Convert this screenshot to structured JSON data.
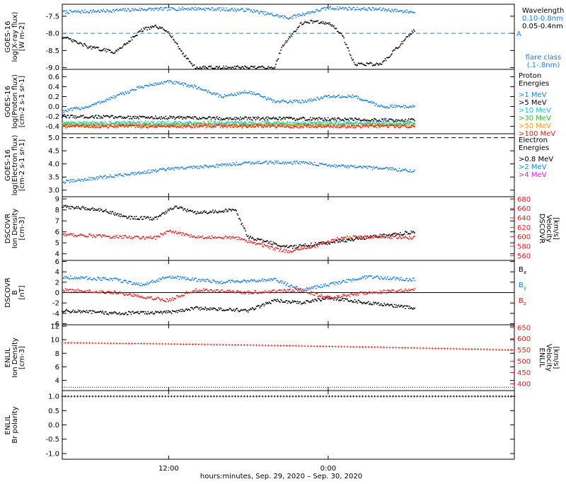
{
  "figure": {
    "xlabel": "hours:minutes, Sep. 29, 2020 – Sep. 30, 2020",
    "x_range": [
      "2020-09-29T04:00",
      "2020-09-30T14:00"
    ],
    "x_ticks": [
      {
        "t": "2020-09-29T12:00",
        "label": "12:00"
      },
      {
        "t": "2020-09-30T00:00",
        "label": "0:00"
      }
    ]
  },
  "colors": {
    "black": "#000000",
    "blue": "#1e7fd6",
    "cyan": "#22c4d8",
    "green": "#33bb33",
    "orange": "#e8a020",
    "red": "#e02020",
    "magenta": "#dd22dd"
  },
  "chart_data": [
    {
      "id": "xray",
      "type": "scatter",
      "ylabel": [
        "GOES-16",
        "log(X-ray flux)",
        "[W m-2]"
      ],
      "ylim": [
        -9.05,
        -7.15
      ],
      "yticks": [
        -9.0,
        -8.5,
        -8.0,
        -7.5
      ],
      "ytick_labels": [
        "-9.0",
        "-8.5",
        "-8.0",
        "-7.5"
      ],
      "ref_line": {
        "y": -8.0,
        "label": "A",
        "color": "blue"
      },
      "legend": {
        "title": "Wavelength",
        "entries": [
          {
            "label": "0.10-0.8nm",
            "color": "blue"
          },
          {
            "label": "0.05-0.4nm",
            "color": "black"
          }
        ],
        "footer": [
          "flare class",
          "(.1-.8nm)"
        ],
        "footer_color": "blue"
      },
      "series": [
        {
          "color": "blue",
          "points": [
            [
              "2020-09-29T04:00",
              -7.38
            ],
            [
              "2020-09-29T07:00",
              -7.35
            ],
            [
              "2020-09-29T10:00",
              -7.3
            ],
            [
              "2020-09-29T14:00",
              -7.28
            ],
            [
              "2020-09-29T18:00",
              -7.32
            ],
            [
              "2020-09-29T21:00",
              -7.55
            ],
            [
              "2020-09-29T22:00",
              -7.45
            ],
            [
              "2020-09-30T00:00",
              -7.26
            ],
            [
              "2020-09-30T04:00",
              -7.3
            ],
            [
              "2020-09-30T06:30",
              -7.38
            ]
          ]
        },
        {
          "color": "black",
          "points": [
            [
              "2020-09-29T04:00",
              -8.1
            ],
            [
              "2020-09-29T06:00",
              -8.4
            ],
            [
              "2020-09-29T08:00",
              -8.55
            ],
            [
              "2020-09-29T10:00",
              -7.9
            ],
            [
              "2020-09-29T11:00",
              -7.8
            ],
            [
              "2020-09-29T12:00",
              -7.95
            ],
            [
              "2020-09-29T13:00",
              -8.55
            ],
            [
              "2020-09-29T14:00",
              -9.0
            ],
            [
              "2020-09-29T20:00",
              -9.0
            ],
            [
              "2020-09-29T20:30",
              -8.4
            ],
            [
              "2020-09-29T22:00",
              -7.7
            ],
            [
              "2020-09-29T23:00",
              -7.65
            ],
            [
              "2020-09-30T00:00",
              -7.7
            ],
            [
              "2020-09-30T01:00",
              -8.0
            ],
            [
              "2020-09-30T02:00",
              -8.9
            ],
            [
              "2020-09-30T04:00",
              -8.9
            ],
            [
              "2020-09-30T05:00",
              -8.5
            ],
            [
              "2020-09-30T06:00",
              -8.1
            ],
            [
              "2020-09-30T06:30",
              -7.9
            ]
          ]
        }
      ]
    },
    {
      "id": "proton",
      "type": "scatter",
      "ylabel": [
        "GOES-16",
        "log(Proton flux)",
        "[cm-2 s-1 sr-1]"
      ],
      "ylim": [
        -0.55,
        0.75
      ],
      "yticks": [
        -0.4,
        -0.2,
        0.0,
        0.2,
        0.4,
        0.6
      ],
      "ytick_labels": [
        "-0.4",
        "-0.2",
        "0.0",
        "0.2",
        "0.4",
        "0.6"
      ],
      "legend": {
        "title": "Proton Energies",
        "entries": [
          {
            "label": ">1 MeV",
            "color": "blue"
          },
          {
            "label": ">5 MeV",
            "color": "black"
          },
          {
            "label": ">10 MeV",
            "color": "cyan"
          },
          {
            "label": ">30 MeV",
            "color": "green"
          },
          {
            "label": ">50 MeV",
            "color": "orange"
          },
          {
            "label": ">100 MeV",
            "color": "red"
          }
        ]
      },
      "series": [
        {
          "color": "blue",
          "points": [
            [
              "2020-09-29T04:00",
              -0.1
            ],
            [
              "2020-09-29T06:00",
              0.0
            ],
            [
              "2020-09-29T08:00",
              0.2
            ],
            [
              "2020-09-29T10:00",
              0.4
            ],
            [
              "2020-09-29T12:00",
              0.5
            ],
            [
              "2020-09-29T14:00",
              0.4
            ],
            [
              "2020-09-29T16:00",
              0.2
            ],
            [
              "2020-09-29T18:00",
              0.3
            ],
            [
              "2020-09-29T20:00",
              0.1
            ],
            [
              "2020-09-29T22:00",
              0.1
            ],
            [
              "2020-09-30T00:00",
              0.2
            ],
            [
              "2020-09-30T02:00",
              0.2
            ],
            [
              "2020-09-30T04:00",
              0.0
            ],
            [
              "2020-09-30T06:30",
              0.0
            ]
          ]
        },
        {
          "color": "black",
          "points": [
            [
              "2020-09-29T04:00",
              -0.2
            ],
            [
              "2020-09-29T10:00",
              -0.22
            ],
            [
              "2020-09-29T16:00",
              -0.24
            ],
            [
              "2020-09-29T22:00",
              -0.25
            ],
            [
              "2020-09-30T06:30",
              -0.28
            ]
          ]
        },
        {
          "color": "cyan",
          "points": [
            [
              "2020-09-29T04:00",
              -0.33
            ],
            [
              "2020-09-30T06:30",
              -0.33
            ]
          ]
        },
        {
          "color": "green",
          "points": [
            [
              "2020-09-29T04:00",
              -0.36
            ],
            [
              "2020-09-30T06:30",
              -0.36
            ]
          ]
        },
        {
          "color": "orange",
          "points": [
            [
              "2020-09-29T04:00",
              -0.38
            ],
            [
              "2020-09-30T06:30",
              -0.38
            ]
          ]
        },
        {
          "color": "red",
          "points": [
            [
              "2020-09-29T04:00",
              -0.4
            ],
            [
              "2020-09-30T06:30",
              -0.4
            ]
          ]
        }
      ]
    },
    {
      "id": "electron",
      "type": "scatter",
      "ylabel": [
        "GOES-16",
        "log(Electron flux)",
        "[cm-2 s-1 sr-1]"
      ],
      "ylim": [
        2.75,
        5.15
      ],
      "yticks": [
        3.0,
        3.5,
        4.0,
        4.5,
        5.0
      ],
      "ytick_labels": [
        "3.0",
        "3.5",
        "4.0",
        "4.5",
        "5.0"
      ],
      "ref_line": {
        "y": 5.0,
        "color": "black"
      },
      "legend": {
        "title": "Electron Energies",
        "entries": [
          {
            "label": ">0.8 MeV",
            "color": "black"
          },
          {
            "label": ">2 MeV",
            "color": "blue"
          },
          {
            "label": ">4 MeV",
            "color": "magenta"
          }
        ]
      },
      "series": [
        {
          "color": "blue",
          "points": [
            [
              "2020-09-29T04:00",
              3.3
            ],
            [
              "2020-09-29T08:00",
              3.55
            ],
            [
              "2020-09-29T12:00",
              3.8
            ],
            [
              "2020-09-29T16:00",
              3.95
            ],
            [
              "2020-09-29T18:00",
              4.05
            ],
            [
              "2020-09-29T22:00",
              4.05
            ],
            [
              "2020-09-30T00:00",
              3.95
            ],
            [
              "2020-09-30T03:00",
              3.85
            ],
            [
              "2020-09-30T05:00",
              3.8
            ],
            [
              "2020-09-30T06:30",
              3.72
            ]
          ]
        }
      ]
    },
    {
      "id": "dscovr_plasma",
      "type": "scatter",
      "ylabel": [
        "DSCOVR",
        "Ion Density",
        "[cm-3]"
      ],
      "ylim": [
        3.4,
        9.2
      ],
      "yticks": [
        4,
        5,
        6,
        7,
        8,
        9
      ],
      "ytick_labels": [
        "4",
        "5",
        "6",
        "7",
        "8",
        "9"
      ],
      "y2label": [
        "DSCOVR",
        "Velocity",
        "[km/s]"
      ],
      "y2lim": [
        550,
        685
      ],
      "y2ticks": [
        560,
        580,
        600,
        620,
        640,
        660,
        680
      ],
      "y2tick_labels": [
        "560",
        "580",
        "600",
        "620",
        "640",
        "660",
        "680"
      ],
      "series": [
        {
          "color": "black",
          "axis": "left",
          "points": [
            [
              "2020-09-29T04:00",
              8.3
            ],
            [
              "2020-09-29T07:00",
              8.0
            ],
            [
              "2020-09-29T09:00",
              7.3
            ],
            [
              "2020-09-29T11:00",
              7.2
            ],
            [
              "2020-09-29T12:30",
              8.3
            ],
            [
              "2020-09-29T14:00",
              7.7
            ],
            [
              "2020-09-29T17:00",
              8.0
            ],
            [
              "2020-09-29T18:00",
              5.5
            ],
            [
              "2020-09-29T21:00",
              4.6
            ],
            [
              "2020-09-30T00:00",
              5.0
            ],
            [
              "2020-09-30T03:00",
              5.5
            ],
            [
              "2020-09-30T06:30",
              6.0
            ]
          ]
        },
        {
          "color": "red",
          "axis": "right",
          "points": [
            [
              "2020-09-29T04:00",
              605
            ],
            [
              "2020-09-29T08:00",
              600
            ],
            [
              "2020-09-29T11:00",
              598
            ],
            [
              "2020-09-29T12:00",
              612
            ],
            [
              "2020-09-29T14:00",
              600
            ],
            [
              "2020-09-29T17:00",
              598
            ],
            [
              "2020-09-29T20:00",
              575
            ],
            [
              "2020-09-29T21:00",
              568
            ],
            [
              "2020-09-29T23:00",
              580
            ],
            [
              "2020-09-30T01:00",
              598
            ],
            [
              "2020-09-30T04:00",
              600
            ],
            [
              "2020-09-30T06:30",
              598
            ]
          ]
        }
      ]
    },
    {
      "id": "dscovr_mag",
      "type": "scatter",
      "ylabel": [
        "DSCOVR",
        "B",
        "[nT]"
      ],
      "ylim": [
        -6.2,
        6.2
      ],
      "yticks": [
        -6,
        -4,
        -2,
        0,
        2,
        4,
        6
      ],
      "ytick_labels": [
        "-6",
        "-4",
        "-2",
        "0",
        "2",
        "4",
        "6"
      ],
      "zero_line": true,
      "legend": {
        "entries": [
          {
            "label": "Bx",
            "color": "black"
          },
          {
            "label": "By",
            "color": "blue"
          },
          {
            "label": "Bz",
            "color": "red"
          }
        ]
      },
      "series": [
        {
          "color": "black",
          "points": [
            [
              "2020-09-29T04:00",
              -3.5
            ],
            [
              "2020-09-29T08:00",
              -4.0
            ],
            [
              "2020-09-29T12:00",
              -3.8
            ],
            [
              "2020-09-29T14:00",
              -3.0
            ],
            [
              "2020-09-29T18:00",
              -3.5
            ],
            [
              "2020-09-29T20:00",
              -1.5
            ],
            [
              "2020-09-29T22:00",
              -2.0
            ],
            [
              "2020-09-30T00:00",
              -1.0
            ],
            [
              "2020-09-30T03:00",
              -2.0
            ],
            [
              "2020-09-30T06:30",
              -3.0
            ]
          ]
        },
        {
          "color": "blue",
          "points": [
            [
              "2020-09-29T04:00",
              3.0
            ],
            [
              "2020-09-29T08:00",
              2.5
            ],
            [
              "2020-09-29T10:00",
              1.5
            ],
            [
              "2020-09-29T12:00",
              3.0
            ],
            [
              "2020-09-29T16:00",
              2.0
            ],
            [
              "2020-09-29T20:00",
              2.5
            ],
            [
              "2020-09-29T22:00",
              0.5
            ],
            [
              "2020-09-30T00:00",
              1.5
            ],
            [
              "2020-09-30T03:00",
              3.0
            ],
            [
              "2020-09-30T06:30",
              2.5
            ]
          ]
        },
        {
          "color": "red",
          "points": [
            [
              "2020-09-29T04:00",
              0.5
            ],
            [
              "2020-09-29T08:00",
              0.0
            ],
            [
              "2020-09-29T12:00",
              -1.5
            ],
            [
              "2020-09-29T14:00",
              0.5
            ],
            [
              "2020-09-29T18:00",
              0.0
            ],
            [
              "2020-09-29T22:00",
              0.5
            ],
            [
              "2020-09-30T00:00",
              -1.0
            ],
            [
              "2020-09-30T03:00",
              0.0
            ],
            [
              "2020-09-30T06:30",
              0.5
            ]
          ]
        }
      ]
    },
    {
      "id": "enlil_plasma",
      "type": "line",
      "ylabel": [
        "ENLIL",
        "Ion Density",
        "[cm-3]"
      ],
      "ylim": [
        2.5,
        12.2
      ],
      "yticks": [
        4,
        6,
        8,
        10,
        12
      ],
      "ytick_labels": [
        "4",
        "6",
        "8",
        "10",
        "12"
      ],
      "y2label": [
        "ENLIL",
        "Velocity",
        "[km/s]"
      ],
      "y2lim": [
        370,
        662
      ],
      "y2ticks": [
        400,
        450,
        500,
        550,
        600,
        650
      ],
      "y2tick_labels": [
        "400",
        "450",
        "500",
        "550",
        "600",
        "650"
      ],
      "series": [
        {
          "color": "black",
          "axis": "left",
          "style": "dotted",
          "points": [
            [
              "2020-09-29T04:00",
              3.0
            ],
            [
              "2020-09-30T14:00",
              3.0
            ]
          ]
        },
        {
          "color": "red",
          "axis": "right",
          "style": "crosses",
          "points": [
            [
              "2020-09-29T04:00",
              582
            ],
            [
              "2020-09-29T12:00",
              577
            ],
            [
              "2020-09-29T20:00",
              570
            ],
            [
              "2020-09-30T04:00",
              562
            ],
            [
              "2020-09-30T14:00",
              550
            ]
          ]
        }
      ]
    },
    {
      "id": "enlil_polarity",
      "type": "line",
      "ylabel": [
        "ENLIL",
        "Br polarity"
      ],
      "ylim": [
        -1.2,
        1.2
      ],
      "yticks": [
        -1.0,
        -0.5,
        0.0,
        0.5,
        1.0
      ],
      "ytick_labels": [
        "-1.0",
        "-0.5",
        "0.0",
        "0.5",
        "1.0"
      ],
      "series": [
        {
          "color": "black",
          "style": "crosses",
          "points": [
            [
              "2020-09-29T04:00",
              1.0
            ],
            [
              "2020-09-30T14:00",
              1.0
            ]
          ]
        }
      ]
    }
  ]
}
